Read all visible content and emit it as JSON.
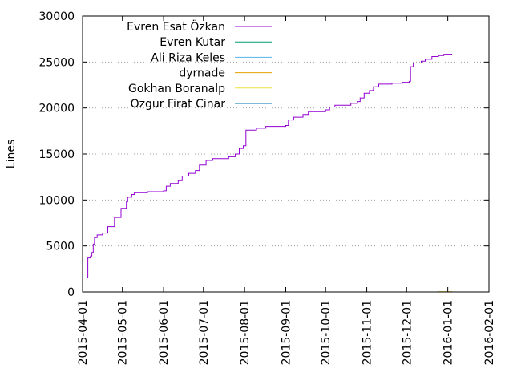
{
  "chart_data": {
    "type": "line",
    "title": "",
    "xlabel": "",
    "ylabel": "Lines",
    "xlim": [
      "2015-04-01",
      "2016-02-01"
    ],
    "ylim": [
      0,
      30000
    ],
    "y_ticks": [
      0,
      5000,
      10000,
      15000,
      20000,
      25000,
      30000
    ],
    "x_ticks": [
      "2015-04-01",
      "2015-05-01",
      "2015-06-01",
      "2015-07-01",
      "2015-08-01",
      "2015-09-01",
      "2015-10-01",
      "2015-11-01",
      "2015-12-01",
      "2016-01-01",
      "2016-02-01"
    ],
    "grid": "horizontal dotted",
    "legend_position": "top-left",
    "series": [
      {
        "name": "Evren Esat Özkan",
        "color": "#9400d3",
        "points": [
          [
            "2015-04-04",
            1600
          ],
          [
            "2015-04-05",
            3700
          ],
          [
            "2015-04-07",
            3900
          ],
          [
            "2015-04-08",
            4300
          ],
          [
            "2015-04-09",
            5200
          ],
          [
            "2015-04-10",
            5900
          ],
          [
            "2015-04-12",
            6200
          ],
          [
            "2015-04-16",
            6400
          ],
          [
            "2015-04-20",
            7100
          ],
          [
            "2015-04-25",
            8100
          ],
          [
            "2015-04-30",
            9100
          ],
          [
            "2015-05-04",
            9800
          ],
          [
            "2015-05-05",
            10300
          ],
          [
            "2015-05-08",
            10600
          ],
          [
            "2015-05-10",
            10800
          ],
          [
            "2015-05-20",
            10900
          ],
          [
            "2015-06-01",
            11000
          ],
          [
            "2015-06-03",
            11500
          ],
          [
            "2015-06-06",
            11800
          ],
          [
            "2015-06-12",
            12100
          ],
          [
            "2015-06-15",
            12600
          ],
          [
            "2015-06-20",
            12900
          ],
          [
            "2015-06-25",
            13200
          ],
          [
            "2015-06-28",
            13800
          ],
          [
            "2015-07-03",
            14300
          ],
          [
            "2015-07-08",
            14500
          ],
          [
            "2015-07-20",
            14700
          ],
          [
            "2015-07-25",
            15000
          ],
          [
            "2015-07-28",
            15600
          ],
          [
            "2015-07-31",
            15900
          ],
          [
            "2015-08-02",
            17600
          ],
          [
            "2015-08-10",
            17800
          ],
          [
            "2015-08-17",
            18000
          ],
          [
            "2015-09-01",
            18100
          ],
          [
            "2015-09-03",
            18700
          ],
          [
            "2015-09-07",
            19000
          ],
          [
            "2015-09-14",
            19300
          ],
          [
            "2015-09-18",
            19600
          ],
          [
            "2015-10-01",
            19800
          ],
          [
            "2015-10-04",
            20100
          ],
          [
            "2015-10-08",
            20300
          ],
          [
            "2015-10-20",
            20500
          ],
          [
            "2015-10-25",
            20700
          ],
          [
            "2015-10-27",
            21100
          ],
          [
            "2015-10-30",
            21600
          ],
          [
            "2015-11-03",
            21900
          ],
          [
            "2015-11-06",
            22300
          ],
          [
            "2015-11-10",
            22600
          ],
          [
            "2015-11-20",
            22700
          ],
          [
            "2015-11-28",
            22800
          ],
          [
            "2015-12-03",
            22900
          ],
          [
            "2015-12-04",
            24500
          ],
          [
            "2015-12-06",
            24900
          ],
          [
            "2015-12-12",
            25100
          ],
          [
            "2015-12-15",
            25300
          ],
          [
            "2015-12-20",
            25600
          ],
          [
            "2015-12-25",
            25700
          ],
          [
            "2015-12-29",
            25850
          ],
          [
            "2016-01-04",
            25900
          ]
        ]
      },
      {
        "name": "Evren Kutar",
        "color": "#009e73",
        "points": []
      },
      {
        "name": "Ali Riza Keles",
        "color": "#56b4e9",
        "points": []
      },
      {
        "name": "dyrnade",
        "color": "#e69f00",
        "points": [
          [
            "2015-12-25",
            30
          ],
          [
            "2016-01-04",
            60
          ]
        ]
      },
      {
        "name": "Gokhan Boranalp",
        "color": "#f0e442",
        "points": [
          [
            "2015-12-25",
            20
          ],
          [
            "2016-01-04",
            40
          ]
        ]
      },
      {
        "name": "Ozgur Firat Cinar",
        "color": "#0072b2",
        "points": []
      }
    ]
  }
}
